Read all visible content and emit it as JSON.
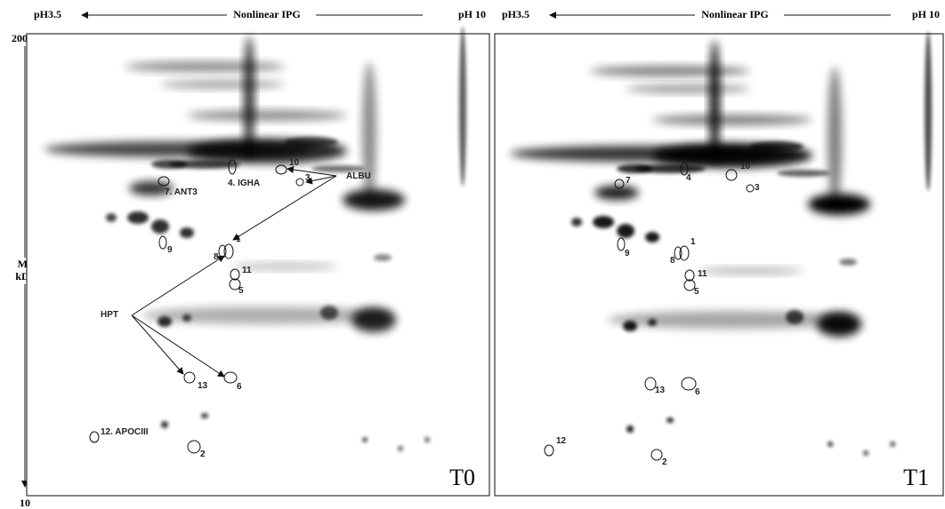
{
  "axis": {
    "top": "200",
    "bottom": "10",
    "title_line1": "Mr",
    "title_line2": "kDa"
  },
  "panels": [
    {
      "header": {
        "left": "pH3.5",
        "center": "Nonlinear IPG",
        "right": "pH 10"
      },
      "label": "T0",
      "spots": [
        {
          "label": "1"
        },
        {
          "label": "8"
        },
        {
          "label": "10"
        },
        {
          "label": "3"
        },
        {
          "label": "4. IGHA"
        },
        {
          "label": "7. ANT3"
        },
        {
          "label": "9"
        },
        {
          "label": "11"
        },
        {
          "label": "5"
        },
        {
          "label": "13"
        },
        {
          "label": "6"
        },
        {
          "label": "12. APOCIII"
        },
        {
          "label": "2"
        }
      ],
      "annotations": [
        {
          "label": "ALBU"
        },
        {
          "label": "HPT"
        }
      ]
    },
    {
      "header": {
        "left": "pH3.5",
        "center": "Nonlinear IPG",
        "right": "pH 10"
      },
      "label": "T1",
      "spots": [
        {
          "label": "1"
        },
        {
          "label": "8"
        },
        {
          "label": "10"
        },
        {
          "label": "3"
        },
        {
          "label": "4"
        },
        {
          "label": "7"
        },
        {
          "label": "9"
        },
        {
          "label": "11"
        },
        {
          "label": "5"
        },
        {
          "label": "13"
        },
        {
          "label": "6"
        },
        {
          "label": "12"
        },
        {
          "label": "2"
        }
      ]
    }
  ]
}
